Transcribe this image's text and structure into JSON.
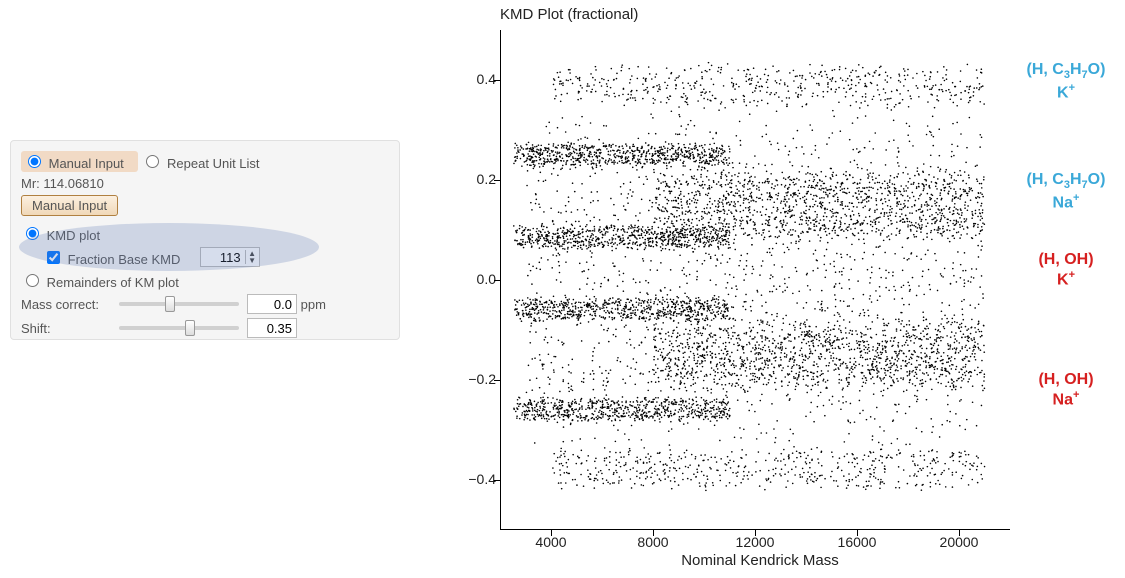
{
  "panel": {
    "input_mode": {
      "manual_label": "Manual Input",
      "repeat_label": "Repeat Unit List",
      "selected": "manual"
    },
    "mr_label": "Mr: 114.06810",
    "manual_button": "Manual Input",
    "plot_mode": {
      "kmd_label": "KMD plot",
      "remainders_label": "Remainders of KM plot",
      "selected": "kmd"
    },
    "fraction_base": {
      "label": "Fraction Base KMD",
      "checked": true,
      "value": "113"
    },
    "mass_correct": {
      "label": "Mass correct:",
      "value": "0.0",
      "unit": "ppm",
      "slider_pos": 0.42
    },
    "shift": {
      "label": "Shift:",
      "value": "0.35",
      "slider_pos": 0.6
    }
  },
  "chart": {
    "type": "scatter",
    "title": "KMD Plot (fractional)",
    "xlabel": "Nominal Kendrick Mass",
    "xlim": [
      2000,
      22000
    ],
    "xticks": [
      4000,
      8000,
      12000,
      16000,
      20000
    ],
    "ylim": [
      -0.5,
      0.5
    ],
    "yticks": [
      -0.4,
      -0.2,
      0.0,
      0.2,
      0.4
    ],
    "ytick_labels": [
      "−0.4",
      "−0.2",
      "0.0",
      "0.2",
      "0.4"
    ],
    "point_color": "#000000",
    "point_radius": 0.8,
    "background_color": "#ffffff",
    "bands": [
      {
        "y_center": 0.39,
        "y_spread": 0.035,
        "xmin": 4000,
        "xmax": 21000,
        "density": 500
      },
      {
        "y_center": 0.25,
        "y_spread": 0.02,
        "xmin": 2500,
        "xmax": 11000,
        "density": 700
      },
      {
        "y_center": 0.085,
        "y_spread": 0.02,
        "xmin": 2500,
        "xmax": 11000,
        "density": 700
      },
      {
        "y_center": 0.15,
        "y_spread": 0.06,
        "xmin": 8000,
        "xmax": 21000,
        "density": 1200
      },
      {
        "y_center": -0.06,
        "y_spread": 0.02,
        "xmin": 2500,
        "xmax": 11000,
        "density": 650
      },
      {
        "y_center": -0.26,
        "y_spread": 0.02,
        "xmin": 2500,
        "xmax": 11000,
        "density": 650
      },
      {
        "y_center": -0.15,
        "y_spread": 0.06,
        "xmin": 8000,
        "xmax": 21000,
        "density": 1200
      },
      {
        "y_center": -0.38,
        "y_spread": 0.035,
        "xmin": 4000,
        "xmax": 21000,
        "density": 500
      },
      {
        "y_center": 0.0,
        "y_spread": 0.3,
        "xmin": 3000,
        "xmax": 21000,
        "density": 1800
      }
    ],
    "annotations": [
      {
        "line1": "(H, C3H7O)",
        "line2": "K+",
        "color": "#3aa8d8",
        "y": 0.4,
        "formula": true
      },
      {
        "line1": "(H, C3H7O)",
        "line2": "Na+",
        "color": "#3aa8d8",
        "y": 0.18,
        "formula": true
      },
      {
        "line1": "(H, OH)",
        "line2": "K+",
        "color": "#d62020",
        "y": 0.02,
        "formula": false
      },
      {
        "line1": "(H, OH)",
        "line2": "Na+",
        "color": "#d62020",
        "y": -0.22,
        "formula": false
      }
    ]
  }
}
